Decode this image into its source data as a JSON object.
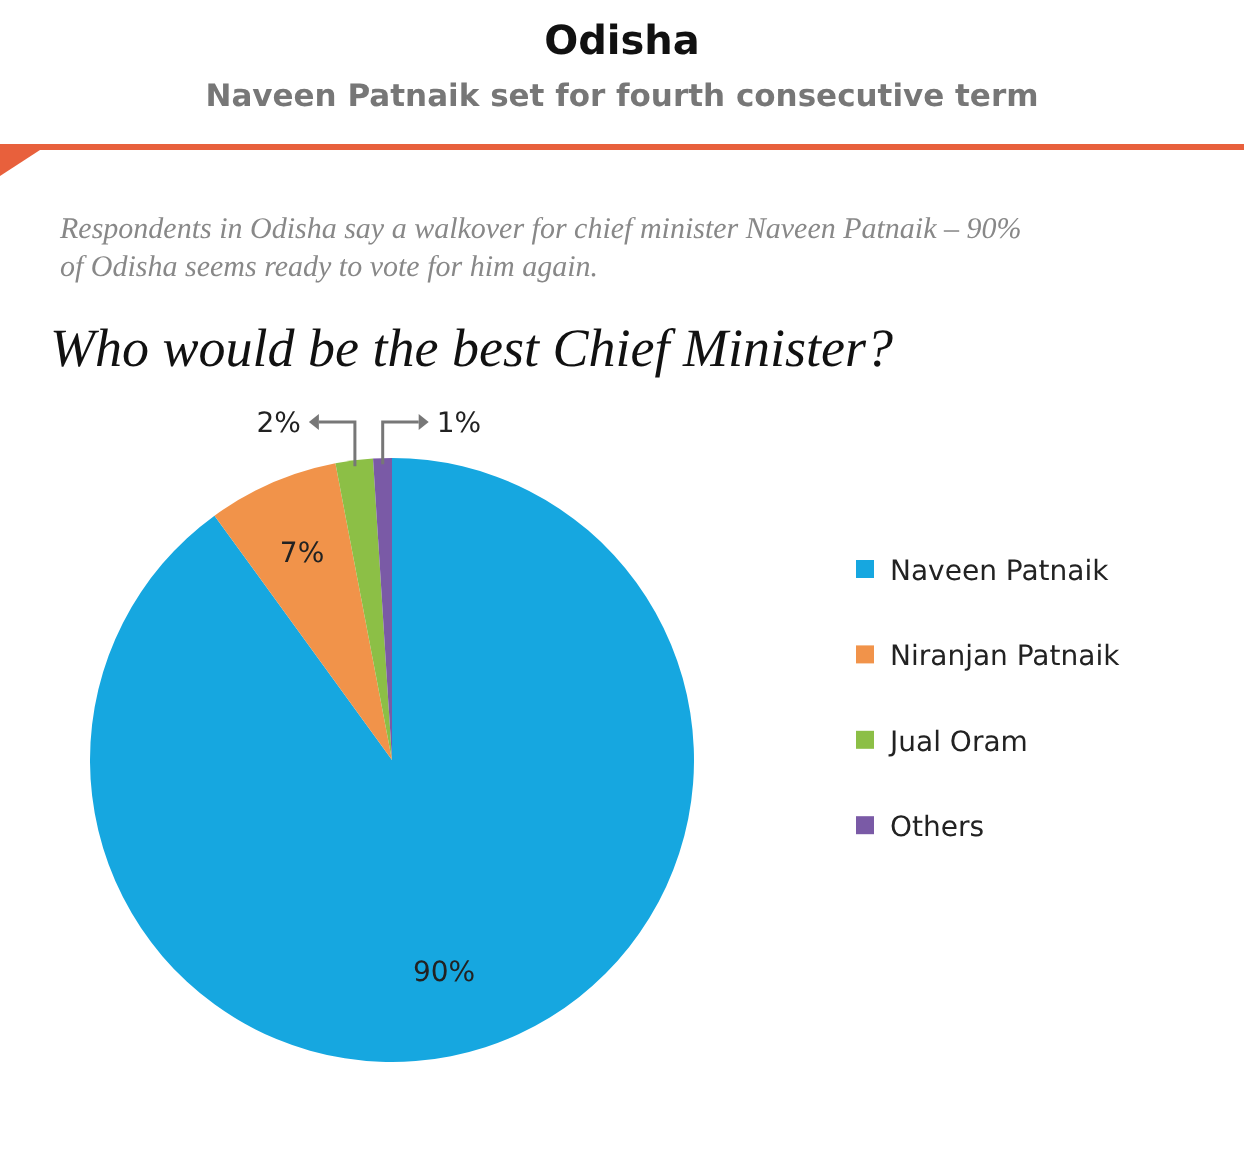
{
  "chart_data": {
    "type": "pie",
    "title": "Who would be the best Chief Minister?",
    "subtitle": "Naveen Patnaik set for fourth consecutive term",
    "annotations": [
      "Odisha",
      "Respondents in Odisha say a walkover for chief minister Naveen Patnaik – 90% of Odisha seems ready to vote for him again."
    ],
    "categories": [
      "Naveen Patnaik",
      "Niranjan Patnaik",
      "Jual Oram",
      "Others"
    ],
    "values": [
      90,
      7,
      2,
      1
    ],
    "colors": [
      "#16a7e0",
      "#f1934a",
      "#8cbf46",
      "#7a5aa6"
    ],
    "value_labels": [
      "90%",
      "7%",
      "2%",
      "1%"
    ],
    "legend": "right"
  }
}
